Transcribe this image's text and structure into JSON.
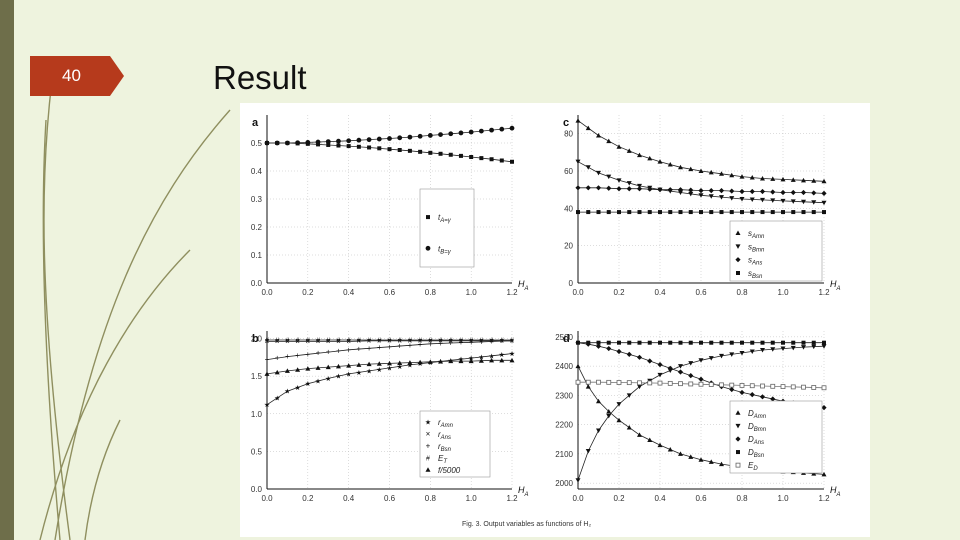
{
  "slide": {
    "number": "40",
    "title": "Result"
  },
  "colors": {
    "badge": "#b63a1c",
    "strip": "#6e6e4a",
    "background": "#eef3de",
    "deco_line": "#8f8f5f"
  },
  "figure": {
    "caption": "Fig. 3. Output variables as functions of H₂",
    "panels": [
      {
        "letter": "a",
        "xlabel": "H_A",
        "xlim": [
          0,
          1.2
        ],
        "ylim": [
          0,
          0.6
        ],
        "xticks": [
          "0.0",
          "0.2",
          "0.4",
          "0.6",
          "0.8",
          "1.0",
          "1.2"
        ],
        "yticks": [
          "0.0",
          "0.1",
          "0.2",
          "0.3",
          "0.4",
          "0.5"
        ],
        "legend": [
          "t_A=γ_A",
          "t_B=γ_B"
        ],
        "series": [
          {
            "marker": "square",
            "x": [
              0,
              0.1,
              0.2,
              0.3,
              0.4,
              0.5,
              0.6,
              0.7,
              0.8,
              0.9,
              1.0,
              1.1,
              1.2
            ],
            "y": [
              0.5,
              0.5,
              0.497,
              0.493,
              0.489,
              0.484,
              0.478,
              0.472,
              0.465,
              0.458,
              0.45,
              0.442,
              0.433
            ]
          },
          {
            "marker": "circle",
            "x": [
              0,
              0.1,
              0.2,
              0.3,
              0.4,
              0.5,
              0.6,
              0.7,
              0.8,
              0.9,
              1.0,
              1.1,
              1.2
            ],
            "y": [
              0.5,
              0.5,
              0.502,
              0.505,
              0.508,
              0.512,
              0.516,
              0.521,
              0.527,
              0.533,
              0.539,
              0.546,
              0.553
            ]
          }
        ]
      },
      {
        "letter": "c",
        "xlabel": "H_A",
        "xlim": [
          0,
          1.2
        ],
        "ylim": [
          0,
          90
        ],
        "xticks": [
          "0.0",
          "0.2",
          "0.4",
          "0.6",
          "0.8",
          "1.0",
          "1.2"
        ],
        "yticks": [
          "0",
          "20",
          "40",
          "60",
          "80"
        ],
        "legend": [
          "s_Amn",
          "s_Bmn",
          "s_Ans",
          "s_Bsn"
        ],
        "series": [
          {
            "marker": "triangle-up",
            "x": [
              0,
              0.1,
              0.2,
              0.3,
              0.4,
              0.5,
              0.6,
              0.7,
              0.8,
              0.9,
              1.0,
              1.1,
              1.2
            ],
            "y": [
              87,
              79,
              73,
              68.5,
              65,
              62,
              60,
              58.5,
              57,
              56,
              55.5,
              55,
              54.5
            ]
          },
          {
            "marker": "triangle-down",
            "x": [
              0,
              0.1,
              0.2,
              0.3,
              0.4,
              0.5,
              0.6,
              0.7,
              0.8,
              0.9,
              1.0,
              1.1,
              1.2
            ],
            "y": [
              65,
              59,
              55,
              52,
              50,
              48.5,
              47,
              46,
              45,
              44.5,
              44,
              43.5,
              43
            ]
          },
          {
            "marker": "diamond",
            "x": [
              0,
              0.1,
              0.2,
              0.3,
              0.4,
              0.5,
              0.6,
              0.7,
              0.8,
              0.9,
              1.0,
              1.1,
              1.2
            ],
            "y": [
              51,
              51,
              50.5,
              50.5,
              50,
              50,
              49.5,
              49.5,
              49,
              49,
              48.5,
              48.5,
              48
            ]
          },
          {
            "marker": "square",
            "x": [
              0,
              0.1,
              0.2,
              0.3,
              0.4,
              0.5,
              0.6,
              0.7,
              0.8,
              0.9,
              1.0,
              1.1,
              1.2
            ],
            "y": [
              38,
              38,
              38,
              38,
              38,
              38,
              38,
              38,
              38,
              38,
              38,
              38,
              38
            ]
          }
        ]
      },
      {
        "letter": "b",
        "xlabel": "H_A",
        "xlim": [
          0,
          1.2
        ],
        "ylim": [
          0,
          2.1
        ],
        "xticks": [
          "0.0",
          "0.2",
          "0.4",
          "0.6",
          "0.8",
          "1.0",
          "1.2"
        ],
        "yticks": [
          "0.0",
          "0.5",
          "1.0",
          "1.5",
          "2.0"
        ],
        "legend": [
          "r_Amn",
          "r_Ans",
          "r_Bsn",
          "E_T",
          "f/5000"
        ],
        "series": [
          {
            "marker": "star",
            "x": [
              0,
              0.1,
              0.2,
              0.3,
              0.4,
              0.5,
              0.6,
              0.7,
              0.8,
              0.9,
              1.0,
              1.1,
              1.2
            ],
            "y": [
              1.12,
              1.3,
              1.4,
              1.47,
              1.53,
              1.57,
              1.61,
              1.65,
              1.68,
              1.71,
              1.74,
              1.77,
              1.8
            ]
          },
          {
            "marker": "x",
            "x": [
              0,
              0.1,
              0.2,
              0.3,
              0.4,
              0.5,
              0.6,
              0.7,
              0.8,
              0.9,
              1.0,
              1.1,
              1.2
            ],
            "y": [
              1.96,
              1.96,
              1.96,
              1.96,
              1.96,
              1.97,
              1.97,
              1.97,
              1.97,
              1.97,
              1.97,
              1.97,
              1.97
            ]
          },
          {
            "marker": "plus",
            "x": [
              0,
              0.1,
              0.2,
              0.3,
              0.4,
              0.5,
              0.6,
              0.7,
              0.8,
              0.9,
              1.0,
              1.1,
              1.2
            ],
            "y": [
              1.72,
              1.76,
              1.79,
              1.82,
              1.85,
              1.87,
              1.89,
              1.91,
              1.93,
              1.94,
              1.95,
              1.96,
              1.97
            ]
          },
          {
            "marker": "hash",
            "x": [
              0,
              0.1,
              0.2,
              0.3,
              0.4,
              0.5,
              0.6,
              0.7,
              0.8,
              0.9,
              1.0,
              1.1,
              1.2
            ],
            "y": [
              1.98,
              1.98,
              1.98,
              1.98,
              1.98,
              1.98,
              1.98,
              1.98,
              1.98,
              1.98,
              1.98,
              1.98,
              1.98
            ]
          },
          {
            "marker": "triangle-up",
            "x": [
              0,
              0.1,
              0.2,
              0.3,
              0.4,
              0.5,
              0.6,
              0.7,
              0.8,
              0.9,
              1.0,
              1.1,
              1.2
            ],
            "y": [
              1.53,
              1.57,
              1.6,
              1.62,
              1.64,
              1.66,
              1.67,
              1.68,
              1.69,
              1.7,
              1.7,
              1.71,
              1.71
            ]
          }
        ]
      },
      {
        "letter": "d",
        "xlabel": "H_A",
        "xlim": [
          0,
          1.2
        ],
        "ylim": [
          1980,
          2520
        ],
        "xticks": [
          "0.0",
          "0.2",
          "0.4",
          "0.6",
          "0.8",
          "1.0",
          "1.2"
        ],
        "yticks": [
          "2000",
          "2100",
          "2200",
          "2300",
          "2400",
          "2500"
        ],
        "legend": [
          "D_Amn",
          "D_Bmn",
          "D_Ans",
          "D_Bsn",
          "E_D"
        ],
        "series": [
          {
            "marker": "triangle-up",
            "x": [
              0,
              0.05,
              0.1,
              0.15,
              0.2,
              0.3,
              0.4,
              0.5,
              0.6,
              0.7,
              0.8,
              0.9,
              1.0,
              1.1,
              1.2
            ],
            "y": [
              2400,
              2330,
              2280,
              2245,
              2215,
              2165,
              2130,
              2100,
              2080,
              2065,
              2055,
              2045,
              2040,
              2035,
              2030
            ]
          },
          {
            "marker": "triangle-down",
            "x": [
              0,
              0.05,
              0.1,
              0.15,
              0.2,
              0.3,
              0.4,
              0.5,
              0.6,
              0.7,
              0.8,
              0.9,
              1.0,
              1.1,
              1.2
            ],
            "y": [
              2010,
              2110,
              2180,
              2230,
              2270,
              2330,
              2370,
              2400,
              2420,
              2435,
              2445,
              2455,
              2460,
              2465,
              2468
            ]
          },
          {
            "marker": "diamond",
            "x": [
              0,
              0.05,
              0.1,
              0.15,
              0.2,
              0.3,
              0.4,
              0.5,
              0.6,
              0.7,
              0.8,
              0.9,
              1.0,
              1.1,
              1.2
            ],
            "y": [
              2480,
              2475,
              2468,
              2460,
              2450,
              2430,
              2405,
              2380,
              2355,
              2330,
              2310,
              2295,
              2280,
              2268,
              2258
            ]
          },
          {
            "marker": "square",
            "x": [
              0,
              0.1,
              0.2,
              0.3,
              0.4,
              0.5,
              0.6,
              0.7,
              0.8,
              0.9,
              1.0,
              1.1,
              1.2
            ],
            "y": [
              2480,
              2480,
              2480,
              2480,
              2480,
              2480,
              2480,
              2480,
              2480,
              2480,
              2480,
              2480,
              2480
            ]
          },
          {
            "marker": "open-square",
            "x": [
              0,
              0.1,
              0.2,
              0.3,
              0.4,
              0.5,
              0.6,
              0.7,
              0.8,
              0.9,
              1.0,
              1.1,
              1.2
            ],
            "y": [
              2345,
              2345,
              2344,
              2343,
              2342,
              2340,
              2338,
              2336,
              2334,
              2332,
              2330,
              2328,
              2326
            ]
          }
        ]
      }
    ]
  }
}
